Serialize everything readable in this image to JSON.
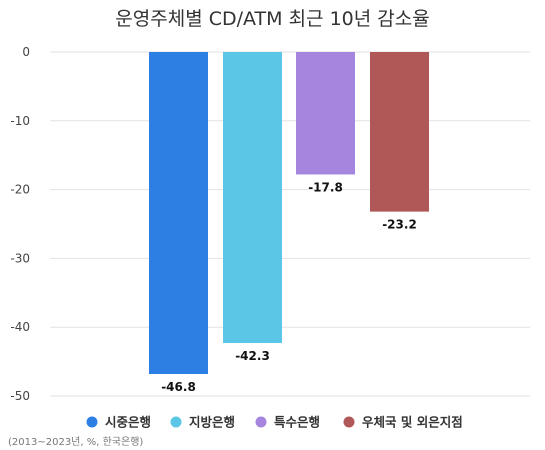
{
  "chart_data": {
    "type": "bar",
    "title": "운영주체별 CD/ATM 최근 10년 감소율",
    "categories": [
      "시중은행",
      "지방은행",
      "특수은행",
      "우체국 및 외은지점"
    ],
    "values": [
      -46.8,
      -42.3,
      -17.8,
      -23.2
    ],
    "value_labels": [
      "-46.8",
      "-42.3",
      "-17.8",
      "-23.2"
    ],
    "colors": [
      "#2e7fe3",
      "#5bc6e6",
      "#a585dd",
      "#b05858"
    ],
    "ylim": [
      -50,
      0
    ],
    "yticks": [
      0,
      -10,
      -20,
      -30,
      -40,
      -50
    ],
    "grid": true,
    "legend": "bottom",
    "xlabel": "",
    "ylabel": "",
    "source_note": "(2013~2023년, %, 한국은행)"
  }
}
